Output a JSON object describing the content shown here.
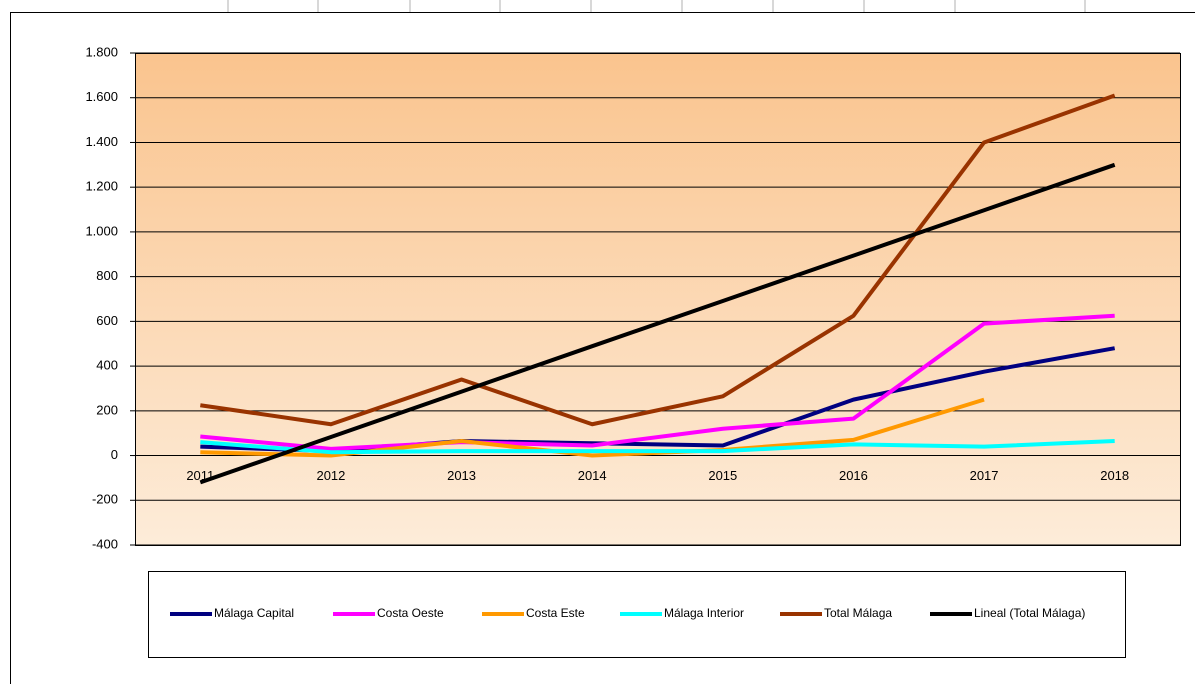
{
  "chart_data": {
    "type": "line",
    "categories": [
      "2011",
      "2012",
      "2013",
      "2014",
      "2015",
      "2016",
      "2017",
      "2018"
    ],
    "series": [
      {
        "name": "Málaga Capital",
        "color": "#000080",
        "values": [
          40,
          20,
          65,
          55,
          45,
          250,
          375,
          480
        ]
      },
      {
        "name": "Costa Oeste",
        "color": "#ff00ff",
        "values": [
          85,
          30,
          60,
          45,
          120,
          165,
          590,
          625
        ]
      },
      {
        "name": "Costa Este",
        "color": "#ff9900",
        "values": [
          15,
          0,
          65,
          0,
          25,
          70,
          250,
          null
        ]
      },
      {
        "name": "Málaga Interior",
        "color": "#00ffff",
        "values": [
          60,
          15,
          20,
          20,
          20,
          50,
          40,
          65
        ]
      },
      {
        "name": "Total Málaga",
        "color": "#993300",
        "values": [
          225,
          140,
          340,
          140,
          265,
          625,
          1400,
          1610
        ]
      },
      {
        "name": "Lineal (Total Málaga)",
        "color": "#000000",
        "values": [
          -120,
          83,
          286,
          489,
          691,
          894,
          1097,
          1300
        ]
      }
    ],
    "ylim": [
      -400,
      1800
    ],
    "yticks": [
      -400,
      -200,
      0,
      200,
      400,
      600,
      800,
      {
        "value": 1000,
        "label": "1.000"
      },
      {
        "value": 1200,
        "label": "1.200"
      },
      {
        "value": 1400,
        "label": "1.400"
      },
      {
        "value": 1600,
        "label": "1.600"
      },
      {
        "value": 1800,
        "label": "1.800"
      }
    ],
    "grid": true,
    "legend": "bottom"
  }
}
